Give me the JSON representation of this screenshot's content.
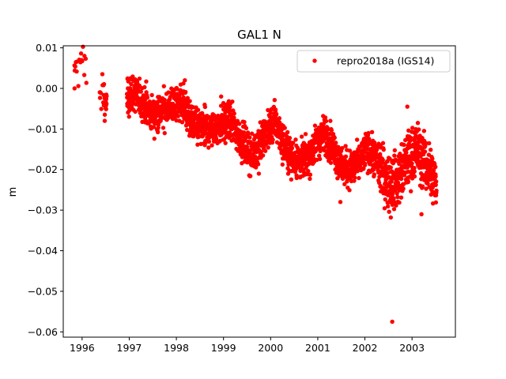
{
  "chart_data": {
    "type": "scatter",
    "title": "GAL1 N",
    "xlabel": "",
    "ylabel": "m",
    "xlim": [
      1995.6,
      2003.92
    ],
    "ylim": [
      -0.0613,
      0.0105
    ],
    "x_ticks": [
      1996,
      1997,
      1998,
      1999,
      2000,
      2001,
      2002,
      2003
    ],
    "x_tick_labels": [
      "1996",
      "1997",
      "1998",
      "1999",
      "2000",
      "2001",
      "2002",
      "2003"
    ],
    "y_ticks": [
      0.01,
      0.0,
      -0.01,
      -0.02,
      -0.03,
      -0.04,
      -0.05,
      -0.06
    ],
    "y_tick_labels": [
      "0.01",
      "0.00",
      "−0.01",
      "−0.02",
      "−0.03",
      "−0.04",
      "−0.05",
      "−0.06"
    ],
    "grid": false,
    "legend_position": "top-right",
    "series": [
      {
        "name": "repro2018a (IGS14)",
        "color": "#ff0000",
        "marker": "circle",
        "trend": [
          [
            1995.83,
            0.004
          ],
          [
            1995.92,
            0.005
          ],
          [
            1996.0,
            0.006
          ],
          [
            1996.08,
            0.004
          ],
          [
            1996.38,
            -0.001
          ],
          [
            1996.46,
            -0.003
          ],
          [
            1996.5,
            -0.004
          ],
          [
            1996.98,
            -0.002
          ],
          [
            1997.1,
            -0.001
          ],
          [
            1997.3,
            -0.004
          ],
          [
            1997.45,
            -0.006
          ],
          [
            1997.6,
            -0.006
          ],
          [
            1997.8,
            -0.005
          ],
          [
            1997.95,
            -0.004
          ],
          [
            1998.1,
            -0.003
          ],
          [
            1998.2,
            -0.005
          ],
          [
            1998.35,
            -0.009
          ],
          [
            1998.55,
            -0.01
          ],
          [
            1998.75,
            -0.01
          ],
          [
            1998.95,
            -0.009
          ],
          [
            1999.15,
            -0.008
          ],
          [
            1999.3,
            -0.011
          ],
          [
            1999.45,
            -0.014
          ],
          [
            1999.6,
            -0.017
          ],
          [
            1999.75,
            -0.014
          ],
          [
            1999.95,
            -0.01
          ],
          [
            2000.1,
            -0.008
          ],
          [
            2000.25,
            -0.013
          ],
          [
            2000.45,
            -0.017
          ],
          [
            2000.65,
            -0.018
          ],
          [
            2000.85,
            -0.016
          ],
          [
            2001.0,
            -0.013
          ],
          [
            2001.15,
            -0.011
          ],
          [
            2001.3,
            -0.014
          ],
          [
            2001.5,
            -0.019
          ],
          [
            2001.7,
            -0.02
          ],
          [
            2001.9,
            -0.018
          ],
          [
            2002.05,
            -0.015
          ],
          [
            2002.2,
            -0.017
          ],
          [
            2002.35,
            -0.02
          ],
          [
            2002.5,
            -0.023
          ],
          [
            2002.65,
            -0.023
          ],
          [
            2002.8,
            -0.02
          ],
          [
            2002.95,
            -0.017
          ],
          [
            2003.1,
            -0.015
          ],
          [
            2003.25,
            -0.018
          ],
          [
            2003.4,
            -0.021
          ],
          [
            2003.52,
            -0.024
          ]
        ],
        "gaps": [
          [
            1996.1,
            1996.37
          ],
          [
            1996.52,
            1996.95
          ]
        ],
        "noteworthy_points": [
          {
            "x": 1995.84,
            "y": 0.0
          },
          {
            "x": 1996.05,
            "y": 0.008
          },
          {
            "x": 1996.43,
            "y": 0.0035
          },
          {
            "x": 1996.48,
            "y": -0.008
          },
          {
            "x": 1998.18,
            "y": 0.002
          },
          {
            "x": 1998.95,
            "y": -0.002
          },
          {
            "x": 1999.75,
            "y": -0.021
          },
          {
            "x": 2001.48,
            "y": -0.028
          },
          {
            "x": 2002.58,
            "y": -0.0575
          },
          {
            "x": 2002.55,
            "y": -0.0318
          },
          {
            "x": 2002.9,
            "y": -0.0045
          },
          {
            "x": 2003.2,
            "y": -0.031
          }
        ],
        "scatter_amplitude": 0.0022
      }
    ]
  }
}
